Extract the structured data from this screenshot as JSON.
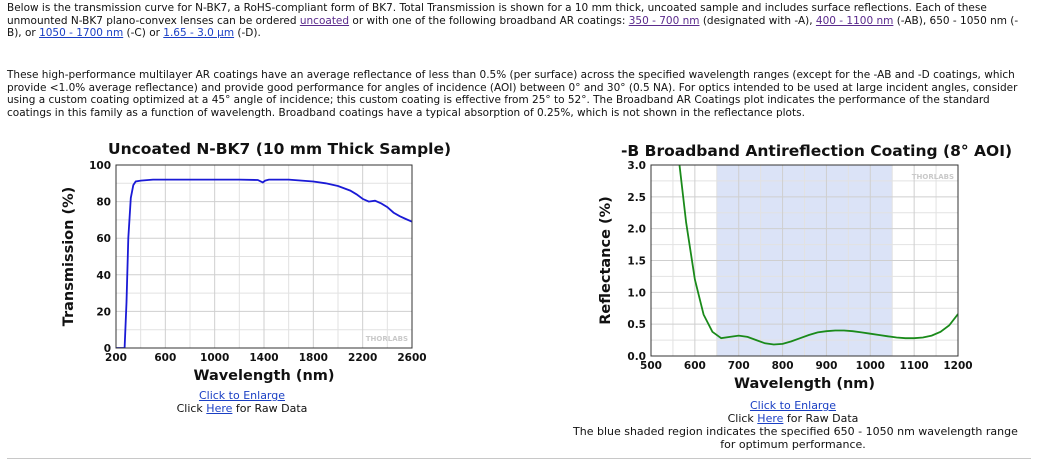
{
  "intro": {
    "p1": [
      {
        "t": "Below is the transmission curve for N-BK7, a RoHS-compliant form of BK7. Total Transmission is shown for a 10 mm thick, uncoated sample and includes surface reflections. Each of these unmounted N-BK7 plano-convex lenses can be ordered "
      },
      {
        "t": "uncoated",
        "link": true,
        "visited": true
      },
      {
        "t": " or with one of the following broadband AR coatings: "
      },
      {
        "t": "350 - 700 nm",
        "link": true,
        "visited": true
      },
      {
        "t": " (designated with -A), "
      },
      {
        "t": "400 - 1100 nm",
        "link": true,
        "visited": true
      },
      {
        "t": " (-AB), 650 - 1050 nm (-B), or "
      },
      {
        "t": "1050 - 1700 nm",
        "link": true
      },
      {
        "t": " (-C) or "
      },
      {
        "t": "1.65 - 3.0 µm",
        "link": true
      },
      {
        "t": " (-D)."
      }
    ],
    "p2": "These high-performance multilayer AR coatings have an average reflectance of less than 0.5% (per surface) across the specified wavelength ranges (except for the -AB and -D coatings, which provide <1.0% average reflectance) and provide good performance for angles of incidence (AOI) between 0° and 30° (0.5 NA). For optics intended to be used at large incident angles, consider using a custom coating optimized at a 45° angle of incidence; this custom coating is effective from 25° to 52°. The Broadband AR Coatings plot indicates the performance of the standard coatings in this family as a function of wavelength. Broadband coatings have a typical absorption of 0.25%, which is not shown in the reflectance plots."
  },
  "left_chart": {
    "title": "Uncoated N-BK7 (10 mm Thick Sample)",
    "xlabel": "Wavelength (nm)",
    "ylabel": "Transmission (%)",
    "watermark": "THORLABS",
    "enlarge_link": "Click to Enlarge",
    "raw_prefix": "Click ",
    "raw_link": "Here",
    "raw_suffix": " for Raw Data"
  },
  "right_chart": {
    "title": "-B Broadband Antireflection Coating (8° AOI)",
    "xlabel": "Wavelength (nm)",
    "ylabel": "Reflectance (%)",
    "watermark": "THORLABS",
    "enlarge_link": "Click to Enlarge",
    "raw_prefix": "Click ",
    "raw_link": "Here",
    "raw_suffix": " for Raw Data",
    "caption_line1": "The blue shaded region indicates the specified 650 - 1050 nm wavelength range",
    "caption_line2": "for optimum performance."
  },
  "chart_data": [
    {
      "type": "line",
      "title": "Uncoated N-BK7 (10 mm Thick Sample)",
      "xlabel": "Wavelength (nm)",
      "ylabel": "Transmission (%)",
      "xlim": [
        200,
        2600
      ],
      "ylim": [
        0,
        100
      ],
      "xticks": [
        200,
        600,
        1000,
        1400,
        1800,
        2200,
        2600
      ],
      "yticks": [
        0,
        20,
        40,
        60,
        80,
        100
      ],
      "grid": true,
      "color": "#1a1ad6",
      "series": [
        {
          "x": [
            200,
            270,
            285,
            300,
            320,
            340,
            360,
            400,
            500,
            700,
            1000,
            1200,
            1350,
            1390,
            1410,
            1440,
            1600,
            1800,
            1900,
            2000,
            2100,
            2150,
            2200,
            2250,
            2300,
            2350,
            2400,
            2450,
            2500,
            2550,
            2600
          ],
          "y": [
            0,
            0,
            25,
            60,
            82,
            89,
            91,
            91.5,
            92,
            92,
            92,
            92,
            91.8,
            90.5,
            91.5,
            92,
            92,
            91,
            90,
            88.5,
            86,
            84,
            81.5,
            80,
            80.5,
            79,
            77,
            74,
            72,
            70.5,
            69
          ]
        }
      ]
    },
    {
      "type": "line",
      "title": "-B Broadband Antireflection Coating (8° AOI)",
      "xlabel": "Wavelength (nm)",
      "ylabel": "Reflectance (%)",
      "xlim": [
        500,
        1200
      ],
      "ylim": [
        0,
        3.0
      ],
      "xticks": [
        500,
        600,
        700,
        800,
        900,
        1000,
        1100,
        1200
      ],
      "yticks": [
        0.0,
        0.5,
        1.0,
        1.5,
        2.0,
        2.5,
        3.0
      ],
      "grid": true,
      "shaded_range": [
        650,
        1050
      ],
      "color": "#1a8a1a",
      "series": [
        {
          "x": [
            565,
            580,
            600,
            620,
            640,
            660,
            680,
            700,
            720,
            740,
            760,
            780,
            800,
            820,
            840,
            860,
            880,
            900,
            920,
            940,
            960,
            980,
            1000,
            1020,
            1040,
            1060,
            1080,
            1100,
            1120,
            1140,
            1160,
            1180,
            1200
          ],
          "y": [
            3.0,
            2.1,
            1.2,
            0.65,
            0.38,
            0.28,
            0.3,
            0.32,
            0.3,
            0.25,
            0.2,
            0.18,
            0.19,
            0.23,
            0.28,
            0.33,
            0.37,
            0.39,
            0.4,
            0.4,
            0.39,
            0.37,
            0.35,
            0.33,
            0.31,
            0.29,
            0.28,
            0.28,
            0.29,
            0.32,
            0.38,
            0.48,
            0.66
          ]
        }
      ]
    }
  ]
}
